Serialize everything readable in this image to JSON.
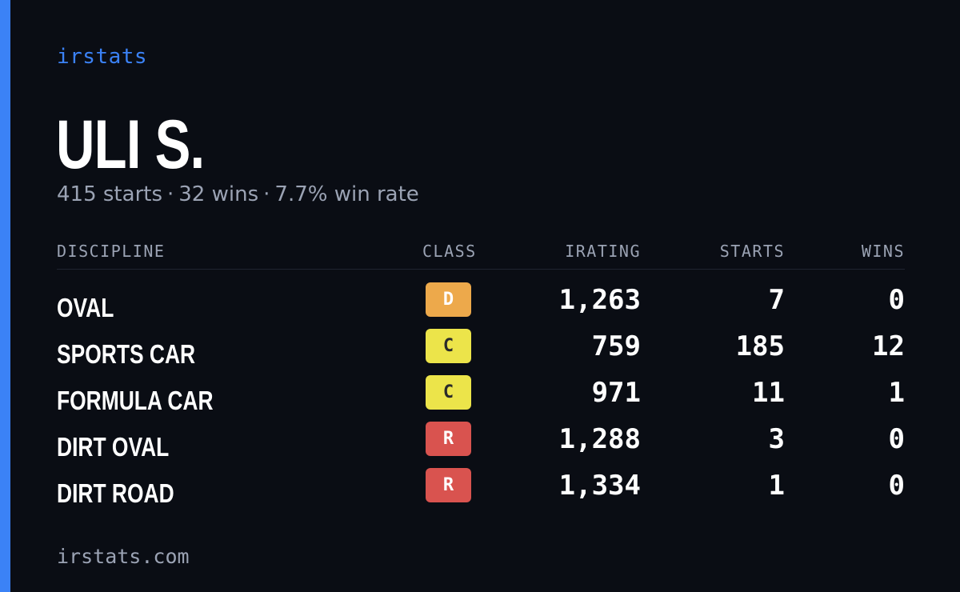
{
  "brand": "irstats",
  "name": "ULI S.",
  "summary": {
    "starts": "415 starts",
    "wins": "32 wins",
    "win_rate": "7.7% win rate",
    "separator": "·"
  },
  "table": {
    "headers": {
      "discipline": "DISCIPLINE",
      "class": "CLASS",
      "irating": "IRATING",
      "starts": "STARTS",
      "wins": "WINS"
    },
    "rows": [
      {
        "discipline": "OVAL",
        "class": "D",
        "irating": "1,263",
        "starts": "7",
        "wins": "0"
      },
      {
        "discipline": "SPORTS CAR",
        "class": "C",
        "irating": "759",
        "starts": "185",
        "wins": "12"
      },
      {
        "discipline": "FORMULA CAR",
        "class": "C",
        "irating": "971",
        "starts": "11",
        "wins": "1"
      },
      {
        "discipline": "DIRT OVAL",
        "class": "R",
        "irating": "1,288",
        "starts": "3",
        "wins": "0"
      },
      {
        "discipline": "DIRT ROAD",
        "class": "R",
        "irating": "1,334",
        "starts": "1",
        "wins": "0"
      }
    ]
  },
  "class_colors": {
    "D": {
      "bg": "#eda94b",
      "fg": "#ffffff"
    },
    "C": {
      "bg": "#ece44a",
      "fg": "#2a2a2a"
    },
    "R": {
      "bg": "#d9534f",
      "fg": "#ffffff"
    }
  },
  "accent_color": "#3b82f6",
  "footer": "irstats.com"
}
